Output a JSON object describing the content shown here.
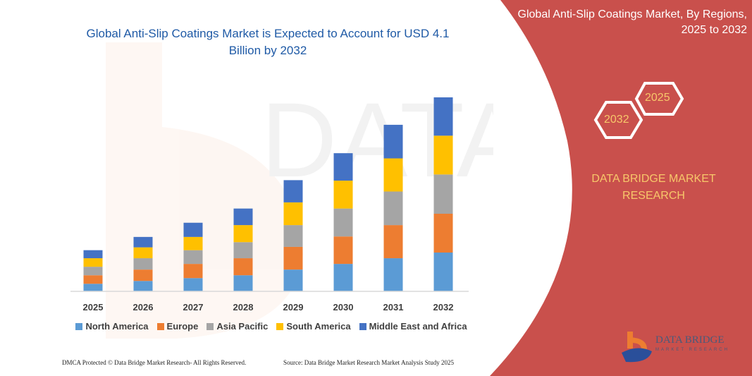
{
  "title": "Global Anti-Slip Coatings Market is Expected to Account for USD 4.1 Billion by 2032",
  "right_panel": {
    "title": "Global Anti-Slip Coatings Market, By Regions, 2025 to 2032",
    "hex_start": "2025",
    "hex_end": "2032",
    "brand": "DATA BRIDGE MARKET RESEARCH",
    "logo_text": "DATA BRIDGE",
    "logo_sub": "MARKET RESEARCH",
    "background_color": "#C9504C"
  },
  "footer": {
    "left": "DMCA Protected © Data Bridge Market Research-  All Rights Reserved.",
    "right": "Source: Data Bridge Market Research  Market Analysis Study 2025"
  },
  "chart_data": {
    "type": "bar",
    "stacked": true,
    "title": "Global Anti-Slip Coatings Market is Expected to Account for USD 4.1 Billion by 2032",
    "xlabel": "",
    "ylabel": "",
    "categories": [
      "2025",
      "2026",
      "2027",
      "2028",
      "2029",
      "2030",
      "2031",
      "2032"
    ],
    "grid": false,
    "legend_position": "bottom",
    "ylim": [
      0,
      4.1
    ],
    "series": [
      {
        "name": "North America",
        "color": "#5B9BD5",
        "values": [
          0.16,
          0.22,
          0.28,
          0.34,
          0.46,
          0.58,
          0.7,
          0.82
        ]
      },
      {
        "name": "Europe",
        "color": "#ED7D31",
        "values": [
          0.18,
          0.24,
          0.3,
          0.36,
          0.48,
          0.58,
          0.7,
          0.82
        ]
      },
      {
        "name": "Asia Pacific",
        "color": "#A5A5A5",
        "values": [
          0.18,
          0.24,
          0.29,
          0.34,
          0.46,
          0.59,
          0.71,
          0.83
        ]
      },
      {
        "name": "South America",
        "color": "#FFC000",
        "values": [
          0.18,
          0.23,
          0.28,
          0.36,
          0.48,
          0.59,
          0.7,
          0.82
        ]
      },
      {
        "name": "Middle East and Africa",
        "color": "#4472C4",
        "values": [
          0.17,
          0.22,
          0.3,
          0.35,
          0.47,
          0.58,
          0.71,
          0.81
        ]
      }
    ]
  }
}
